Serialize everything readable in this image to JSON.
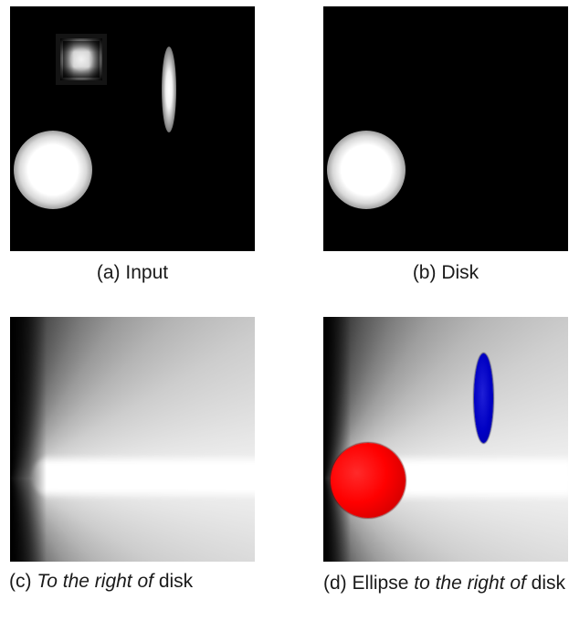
{
  "figure": {
    "panels": [
      {
        "label": "(a)",
        "caption_plain": "Input"
      },
      {
        "label": "(b)",
        "caption_plain": "Disk"
      },
      {
        "label": "(c)",
        "caption_italic": "To the right of",
        "caption_plain": "disk"
      },
      {
        "label": "(d)",
        "caption_plain_before": "Ellipse",
        "caption_italic_1": "to the right",
        "caption_italic_2": "of",
        "caption_plain": "disk"
      }
    ]
  },
  "colors": {
    "background": "#000000",
    "disk_highlight": "#ff0000",
    "ellipse_highlight": "#0000c4"
  }
}
